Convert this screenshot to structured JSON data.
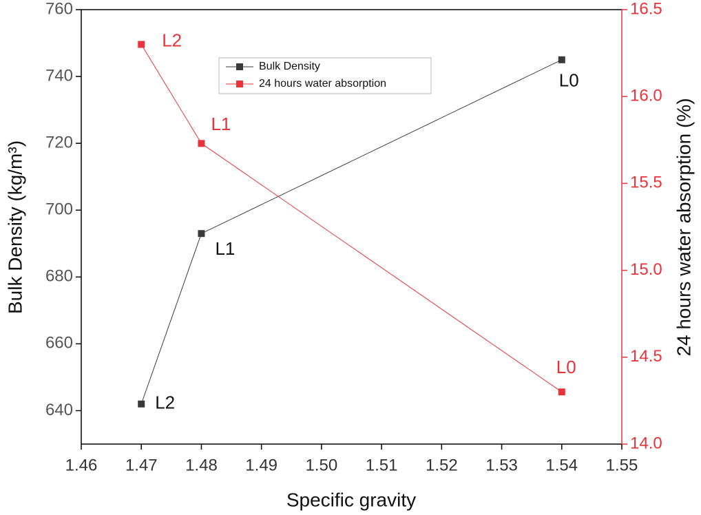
{
  "chart_data": {
    "type": "line",
    "xlabel": "Specific gravity",
    "ylabel": "Bulk Density (kg/m³)",
    "y2label": "24 hours water absorption (%)",
    "x": [
      1.47,
      1.48,
      1.54
    ],
    "series": [
      {
        "name": "Bulk Density",
        "color": "#3a3a3a",
        "values": [
          642,
          693,
          745
        ],
        "labels": [
          "L2",
          "L1",
          "L0"
        ]
      },
      {
        "name": "24 hours water absorption",
        "color": "#e8333a",
        "axis": "y2",
        "values": [
          16.3,
          15.73,
          14.3
        ],
        "labels": [
          "L2",
          "L1",
          "L0"
        ]
      }
    ],
    "xlim": [
      1.46,
      1.55
    ],
    "xticks": [
      1.46,
      1.47,
      1.48,
      1.49,
      {
        "value": 1.5,
        "label": "1.50"
      },
      1.51,
      1.52,
      1.53,
      1.54,
      1.55
    ],
    "ylim": [
      630,
      760
    ],
    "yticks": [
      640,
      660,
      680,
      700,
      720,
      740,
      760
    ],
    "y2lim": [
      14,
      16.5
    ],
    "y2ticks": [
      {
        "value": 14,
        "label": "14.0"
      },
      14.5,
      {
        "value": 15,
        "label": "15.0"
      },
      15.5,
      {
        "value": 16,
        "label": "16.0"
      },
      16.5
    ],
    "y2color": "#e8333a"
  }
}
